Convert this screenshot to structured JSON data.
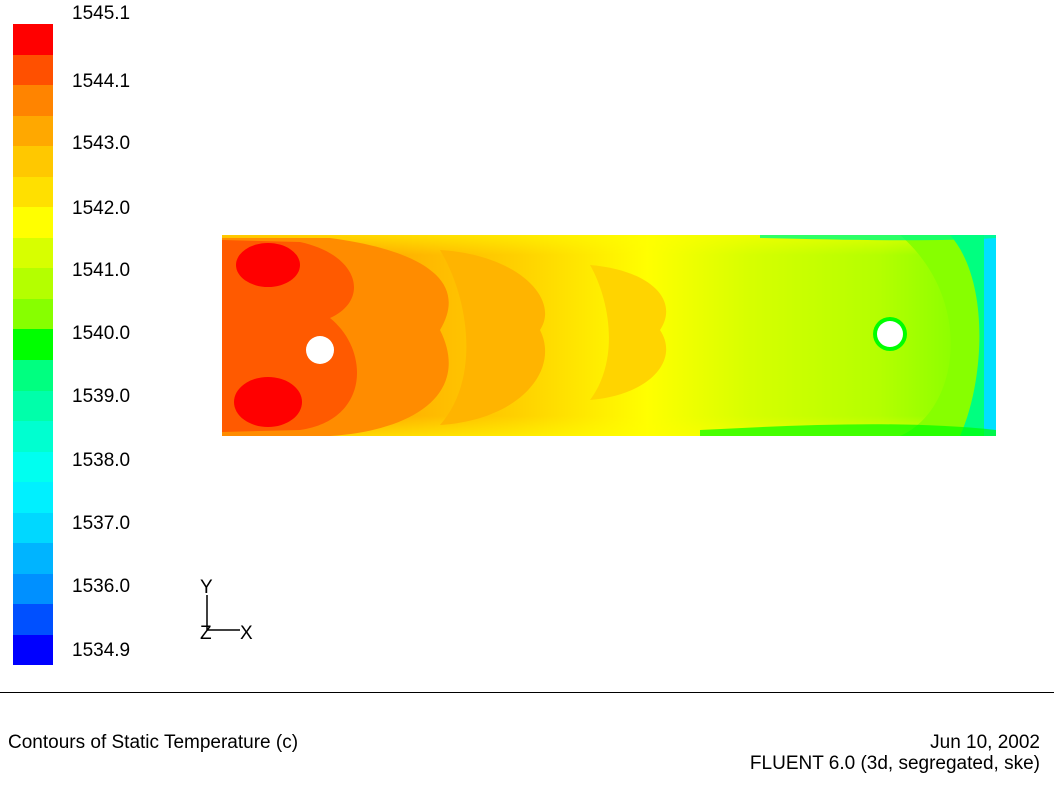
{
  "legend": {
    "ticks": [
      "1545.1",
      "1544.1",
      "1543.0",
      "1542.0",
      "1541.0",
      "1540.0",
      "1539.0",
      "1538.0",
      "1537.0",
      "1536.0",
      "1534.9"
    ],
    "colors": [
      "#ff0000",
      "#ff5000",
      "#ff8400",
      "#ffa800",
      "#ffc800",
      "#ffe000",
      "#ffff00",
      "#d7ff00",
      "#b4ff00",
      "#87ff00",
      "#00ff00",
      "#00ff80",
      "#00ffaa",
      "#00ffd0",
      "#00fff0",
      "#00f0ff",
      "#00d8ff",
      "#00b4ff",
      "#0090ff",
      "#0050ff",
      "#0000ff"
    ],
    "range": [
      1534.9,
      1545.1
    ]
  },
  "axes": {
    "y_label": "Y",
    "z_label": "Z",
    "x_label": "X"
  },
  "footer": {
    "title": "Contours of Static Temperature (c)",
    "date": "Jun 10, 2002",
    "software": "FLUENT 6.0 (3d, segregated, ske)"
  }
}
